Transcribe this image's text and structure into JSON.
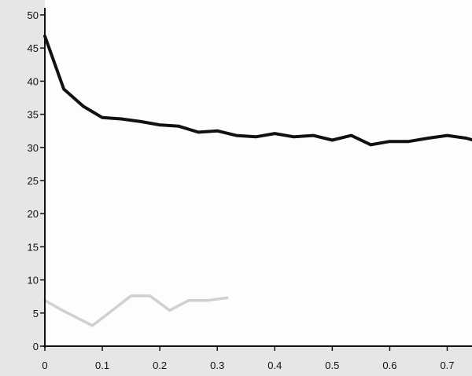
{
  "chart_data": {
    "type": "line",
    "title": "",
    "xlabel": "",
    "ylabel": "",
    "xlim": [
      0,
      0.75
    ],
    "ylim": [
      0,
      50
    ],
    "grid": false,
    "x_ticks": [
      {
        "value": 0,
        "label": "0"
      },
      {
        "value": 0.1,
        "label": "0.1"
      },
      {
        "value": 0.2,
        "label": "0.2"
      },
      {
        "value": 0.3,
        "label": "0.3"
      },
      {
        "value": 0.4,
        "label": "0.4"
      },
      {
        "value": 0.5,
        "label": "0.5"
      },
      {
        "value": 0.6,
        "label": "0.6"
      },
      {
        "value": 0.7,
        "label": "0.7"
      }
    ],
    "y_ticks": [
      {
        "value": 0,
        "label": "0"
      },
      {
        "value": 5,
        "label": "5"
      },
      {
        "value": 10,
        "label": "10"
      },
      {
        "value": 15,
        "label": "15"
      },
      {
        "value": 20,
        "label": "20"
      },
      {
        "value": 25,
        "label": "25"
      },
      {
        "value": 30,
        "label": "30"
      },
      {
        "value": 35,
        "label": "35"
      },
      {
        "value": 40,
        "label": "40"
      },
      {
        "value": 45,
        "label": "45"
      },
      {
        "value": 50,
        "label": "50"
      }
    ],
    "series": [
      {
        "color": "#111111",
        "x": [
          0,
          0.033,
          0.067,
          0.1,
          0.133,
          0.167,
          0.2,
          0.233,
          0.267,
          0.3,
          0.333,
          0.367,
          0.4,
          0.433,
          0.467,
          0.5,
          0.533,
          0.567,
          0.6,
          0.633,
          0.667,
          0.7,
          0.733,
          0.75
        ],
        "values": [
          46.8,
          38.8,
          36.2,
          34.5,
          34.3,
          33.9,
          33.4,
          33.2,
          32.3,
          32.5,
          31.8,
          31.6,
          32.1,
          31.6,
          31.8,
          31.1,
          31.8,
          30.4,
          30.9,
          30.9,
          31.4,
          31.8,
          31.4,
          31.0
        ]
      },
      {
        "color": "#d0d0d0",
        "x": [
          0,
          0.033,
          0.083,
          0.15,
          0.183,
          0.217,
          0.25,
          0.283,
          0.317
        ],
        "values": [
          6.9,
          5.3,
          3.1,
          7.6,
          7.6,
          5.4,
          6.9,
          6.9,
          7.3
        ]
      }
    ]
  }
}
